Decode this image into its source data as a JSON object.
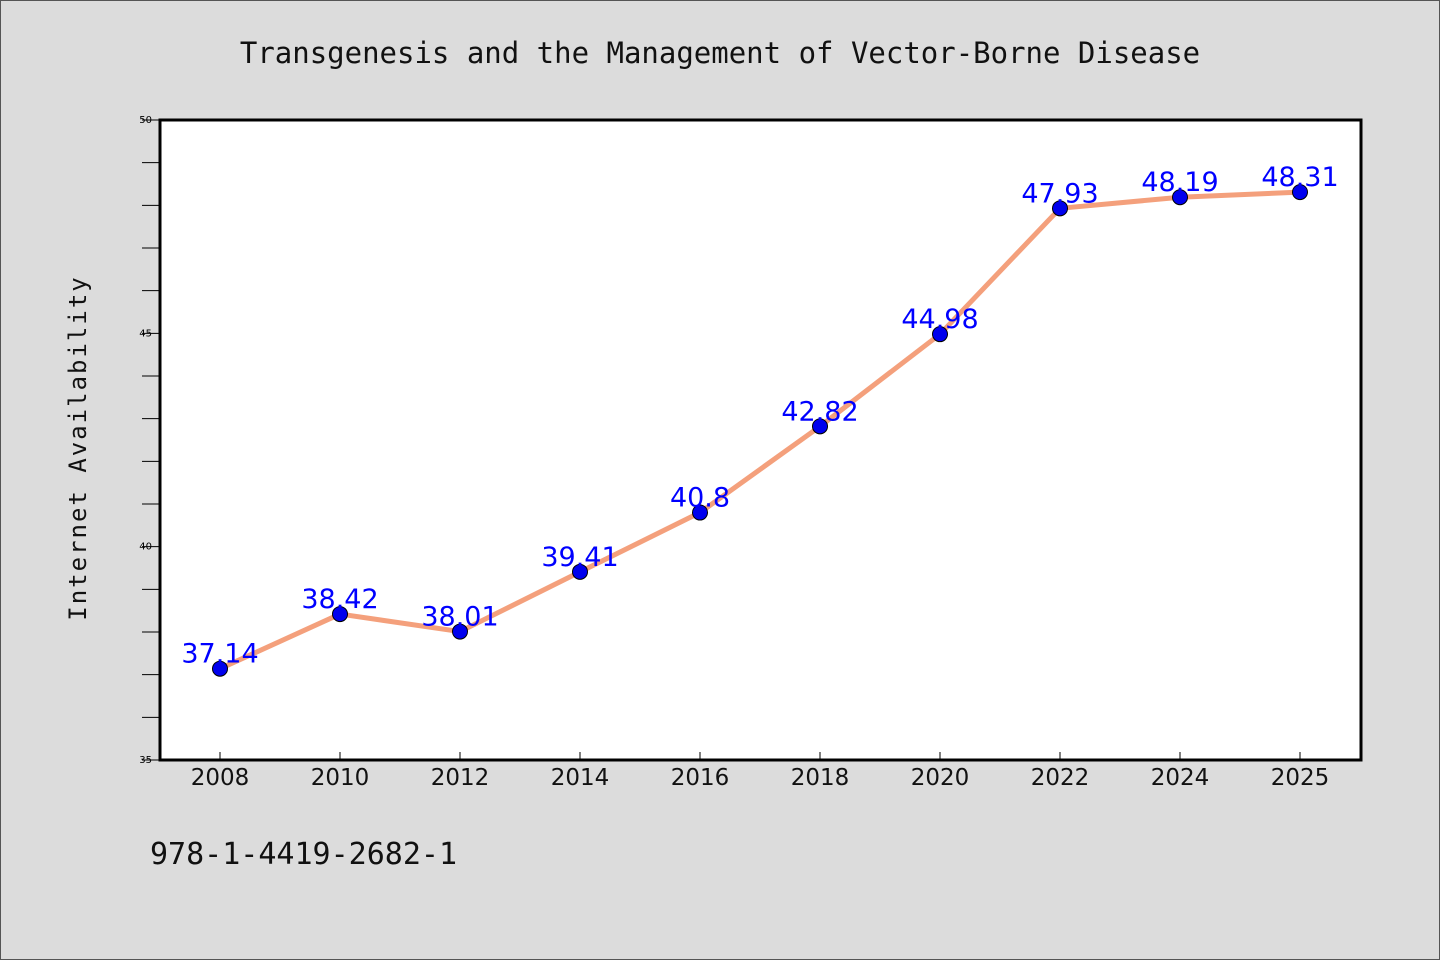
{
  "chart_data": {
    "type": "line",
    "title": "Transgenesis and the Management of Vector-Borne Disease",
    "xlabel": "",
    "ylabel": "Internet Availability",
    "categories": [
      "2008",
      "2010",
      "2012",
      "2014",
      "2016",
      "2018",
      "2020",
      "2022",
      "2024",
      "2025"
    ],
    "series": [
      {
        "values": [
          37.14,
          38.42,
          38.01,
          39.41,
          40.8,
          42.82,
          44.98,
          47.93,
          48.19,
          48.31
        ],
        "labels": [
          "37.14",
          "38.42",
          "38.01",
          "39.41",
          "40.8",
          "42.82",
          "44.98",
          "47.93",
          "48.19",
          "48.31"
        ]
      }
    ],
    "ylim": [
      35,
      50
    ],
    "yticks": [
      "35",
      "40",
      "45",
      "50"
    ],
    "grid": false,
    "legend": "none",
    "colors": {
      "line": "#f4a07c",
      "marker": "#0000ee",
      "data_label": "#0000ff",
      "background": "#dcdcdc",
      "plot_background": "#ffffff"
    }
  },
  "footer": {
    "isbn": "978-1-4419-2682-1"
  }
}
